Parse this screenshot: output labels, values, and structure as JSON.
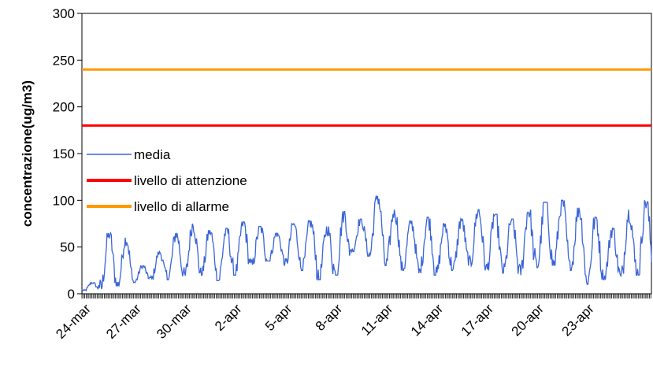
{
  "chart_data": {
    "type": "line",
    "title": "",
    "xlabel": "",
    "ylabel": "concentrazione(ug/m3)",
    "ylim": [
      0,
      300
    ],
    "yticks": [
      "0",
      "50",
      "100",
      "150",
      "200",
      "250",
      "300"
    ],
    "x_start": "24-mar",
    "x_end": "26-apr",
    "x_tick_labels": [
      "24-mar",
      "27-mar",
      "30-mar",
      "2-apr",
      "5-apr",
      "8-apr",
      "11-apr",
      "14-apr",
      "17-apr",
      "20-apr",
      "23-apr"
    ],
    "grid": false,
    "legend_position": "left-middle",
    "series": [
      {
        "name": "media",
        "color": "#3a64d8",
        "sampling": "hourly",
        "approx_daily_peaks": [
          {
            "x": "24-mar",
            "y": 12
          },
          {
            "x": "25-mar",
            "y": 65
          },
          {
            "x": "26-mar",
            "y": 60
          },
          {
            "x": "27-mar",
            "y": 30
          },
          {
            "x": "28-mar",
            "y": 45
          },
          {
            "x": "29-mar",
            "y": 65
          },
          {
            "x": "30-mar",
            "y": 75
          },
          {
            "x": "31-mar",
            "y": 68
          },
          {
            "x": "1-apr",
            "y": 70
          },
          {
            "x": "2-apr",
            "y": 77
          },
          {
            "x": "3-apr",
            "y": 72
          },
          {
            "x": "4-apr",
            "y": 65
          },
          {
            "x": "5-apr",
            "y": 75
          },
          {
            "x": "6-apr",
            "y": 78
          },
          {
            "x": "7-apr",
            "y": 72
          },
          {
            "x": "8-apr",
            "y": 88
          },
          {
            "x": "9-apr",
            "y": 80
          },
          {
            "x": "10-apr",
            "y": 105
          },
          {
            "x": "11-apr",
            "y": 90
          },
          {
            "x": "12-apr",
            "y": 78
          },
          {
            "x": "13-apr",
            "y": 82
          },
          {
            "x": "14-apr",
            "y": 75
          },
          {
            "x": "15-apr",
            "y": 80
          },
          {
            "x": "16-apr",
            "y": 90
          },
          {
            "x": "17-apr",
            "y": 85
          },
          {
            "x": "18-apr",
            "y": 80
          },
          {
            "x": "19-apr",
            "y": 90
          },
          {
            "x": "20-apr",
            "y": 98
          },
          {
            "x": "21-apr",
            "y": 100
          },
          {
            "x": "22-apr",
            "y": 92
          },
          {
            "x": "23-apr",
            "y": 82
          },
          {
            "x": "24-apr",
            "y": 70
          },
          {
            "x": "25-apr",
            "y": 90
          },
          {
            "x": "26-apr",
            "y": 100
          }
        ],
        "approx_daily_minima": [
          3,
          5,
          8,
          12,
          15,
          15,
          18,
          20,
          14,
          20,
          30,
          35,
          30,
          25,
          15,
          20,
          45,
          40,
          30,
          25,
          22,
          20,
          25,
          30,
          25,
          22,
          20,
          28,
          30,
          25,
          10,
          15,
          15,
          20
        ]
      },
      {
        "name": "livello di attenzione",
        "color": "#ff0000",
        "constant": 180
      },
      {
        "name": "livello di allarme",
        "color": "#ff9900",
        "constant": 240
      }
    ]
  }
}
